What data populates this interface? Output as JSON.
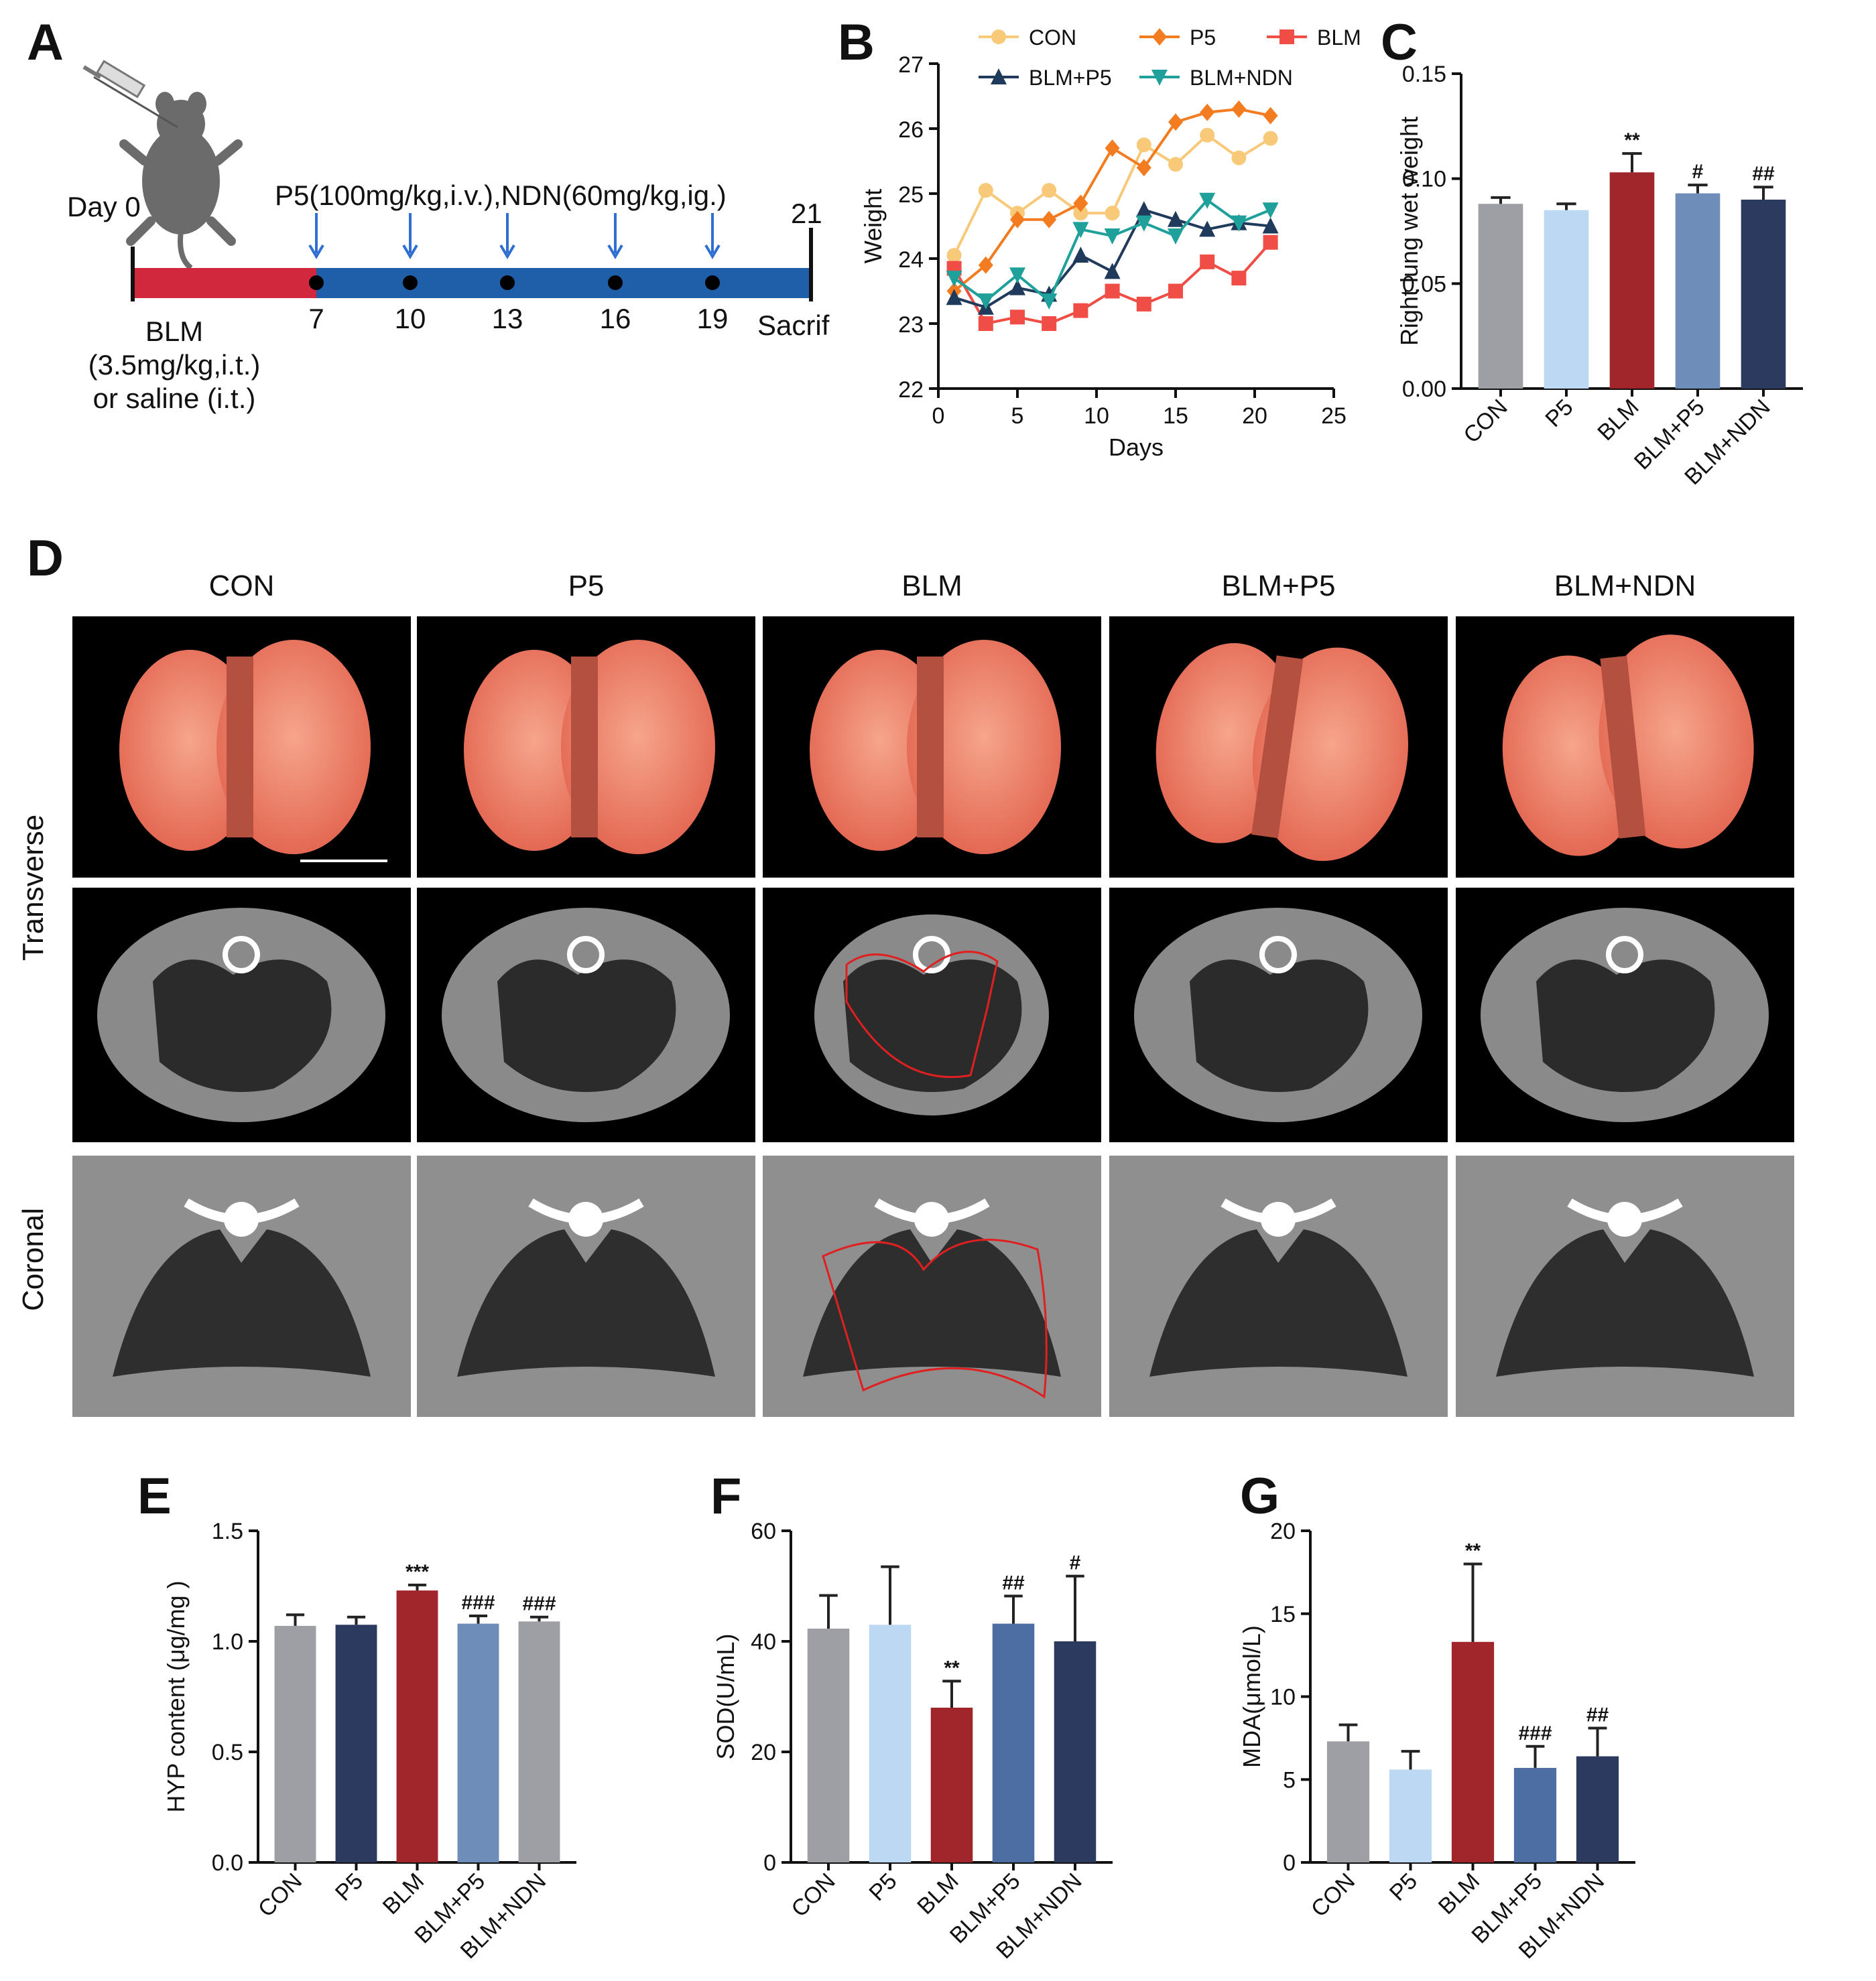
{
  "panels": {
    "A": "A",
    "B": "B",
    "C": "C",
    "D": "D",
    "E": "E",
    "F": "F",
    "G": "G"
  },
  "colors": {
    "CON_line": "#f9c97a",
    "P5_line": "#f37c21",
    "BLM_line": "#ef4d45",
    "BLMP5_line": "#1f3a5a",
    "BLMNDN_line": "#1fa09a",
    "grey": "#9e9fa5",
    "lightblue": "#bdd8f2",
    "darkred": "#a0262c",
    "steel": "#6f8db9",
    "navy": "#2c3a5f",
    "midblue": "#4c6ea3"
  },
  "timeline": {
    "day0": "Day 0",
    "treatment": "P5(100mg/kg,i.v.),NDN(60mg/kg,ig.)",
    "day21": "21",
    "ticks": [
      "7",
      "10",
      "13",
      "16",
      "19"
    ],
    "sacrifice": "Sacrifice",
    "blm1": "BLM",
    "blm2": "(3.5mg/kg,i.t.)",
    "blm3": "or saline (i.t.)"
  },
  "groups_D": {
    "columns": [
      "CON",
      "P5",
      "BLM",
      "BLM+P5",
      "BLM+NDN"
    ],
    "rows": [
      "Transverse",
      "Coronal"
    ]
  },
  "chart_data": [
    {
      "id": "B",
      "type": "line",
      "xlabel": "Days",
      "ylabel": "Weight",
      "xlim": [
        0,
        25
      ],
      "ylim": [
        22,
        27
      ],
      "xticks": [
        "0",
        "5",
        "10",
        "15",
        "20",
        "25"
      ],
      "yticks": [
        "22",
        "23",
        "24",
        "25",
        "26",
        "27"
      ],
      "x": [
        1,
        3,
        5,
        7,
        9,
        11,
        13,
        15,
        17,
        19,
        21
      ],
      "series": [
        {
          "name": "CON",
          "marker": "circle",
          "values": [
            24.05,
            25.05,
            24.7,
            25.05,
            24.7,
            24.7,
            25.75,
            25.45,
            25.9,
            25.55,
            25.85
          ]
        },
        {
          "name": "P5",
          "marker": "diamond",
          "values": [
            23.5,
            23.9,
            24.6,
            24.6,
            24.85,
            25.7,
            25.4,
            26.1,
            26.25,
            26.3,
            26.2
          ]
        },
        {
          "name": "BLM",
          "marker": "square",
          "values": [
            23.85,
            23.0,
            23.1,
            23.0,
            23.2,
            23.5,
            23.3,
            23.5,
            23.95,
            23.7,
            24.25
          ]
        },
        {
          "name": "BLM+P5",
          "marker": "triangle-up",
          "values": [
            23.4,
            23.25,
            23.55,
            23.45,
            24.05,
            23.8,
            24.75,
            24.6,
            24.45,
            24.55,
            24.5
          ]
        },
        {
          "name": "BLM+NDN",
          "marker": "triangle-down",
          "values": [
            23.7,
            23.35,
            23.75,
            23.35,
            24.45,
            24.35,
            24.55,
            24.35,
            24.9,
            24.55,
            24.75
          ]
        }
      ]
    },
    {
      "id": "C",
      "type": "bar",
      "ylabel": "Right lung wet weight",
      "ylim": [
        0,
        0.15
      ],
      "yticks": [
        "0.00",
        "0.05",
        "0.10",
        "0.15"
      ],
      "categories": [
        "CON",
        "P5",
        "BLM",
        "BLM+P5",
        "BLM+NDN"
      ],
      "values": [
        0.088,
        0.085,
        0.103,
        0.093,
        0.09
      ],
      "errors": [
        0.003,
        0.003,
        0.009,
        0.004,
        0.006
      ],
      "annotations": [
        "",
        "",
        "**",
        "#",
        "##"
      ],
      "colors": [
        "#9e9fa5",
        "#bdd8f2",
        "#a0262c",
        "#6f8db9",
        "#2c3a5f"
      ]
    },
    {
      "id": "E",
      "type": "bar",
      "ylabel": "HYP content (μg/mg )",
      "ylim": [
        0,
        1.5
      ],
      "yticks": [
        "0.0",
        "0.5",
        "1.0",
        "1.5"
      ],
      "categories": [
        "CON",
        "P5",
        "BLM",
        "BLM+P5",
        "BLM+NDN"
      ],
      "values": [
        1.07,
        1.075,
        1.23,
        1.08,
        1.09
      ],
      "errors": [
        0.05,
        0.035,
        0.025,
        0.035,
        0.02
      ],
      "annotations": [
        "",
        "",
        "***",
        "###",
        "###"
      ],
      "colors": [
        "#9e9fa5",
        "#2c3a5f",
        "#a0262c",
        "#6f8db9",
        "#9e9fa5"
      ]
    },
    {
      "id": "F",
      "type": "bar",
      "ylabel": "SOD(U/mL)",
      "ylim": [
        0,
        60
      ],
      "yticks": [
        "0",
        "20",
        "40",
        "60"
      ],
      "categories": [
        "CON",
        "P5",
        "BLM",
        "BLM+P5",
        "BLM+NDN"
      ],
      "values": [
        42.3,
        43.0,
        28.0,
        43.2,
        40.0
      ],
      "errors": [
        6.0,
        10.5,
        4.8,
        5.0,
        11.8
      ],
      "annotations": [
        "",
        "",
        "**",
        "##",
        "#"
      ],
      "colors": [
        "#9e9fa5",
        "#bdd8f2",
        "#a0262c",
        "#4c6ea3",
        "#2c3a5f"
      ]
    },
    {
      "id": "G",
      "type": "bar",
      "ylabel": "MDA(μmol/L)",
      "ylim": [
        0,
        20
      ],
      "yticks": [
        "0",
        "5",
        "10",
        "15",
        "20"
      ],
      "categories": [
        "CON",
        "P5",
        "BLM",
        "BLM+P5",
        "BLM+NDN"
      ],
      "values": [
        7.3,
        5.6,
        13.3,
        5.7,
        6.4
      ],
      "errors": [
        1.0,
        1.1,
        4.7,
        1.3,
        1.7
      ],
      "annotations": [
        "",
        "",
        "**",
        "###",
        "##"
      ],
      "colors": [
        "#9e9fa5",
        "#bdd8f2",
        "#a0262c",
        "#4c6ea3",
        "#2c3a5f"
      ]
    }
  ]
}
